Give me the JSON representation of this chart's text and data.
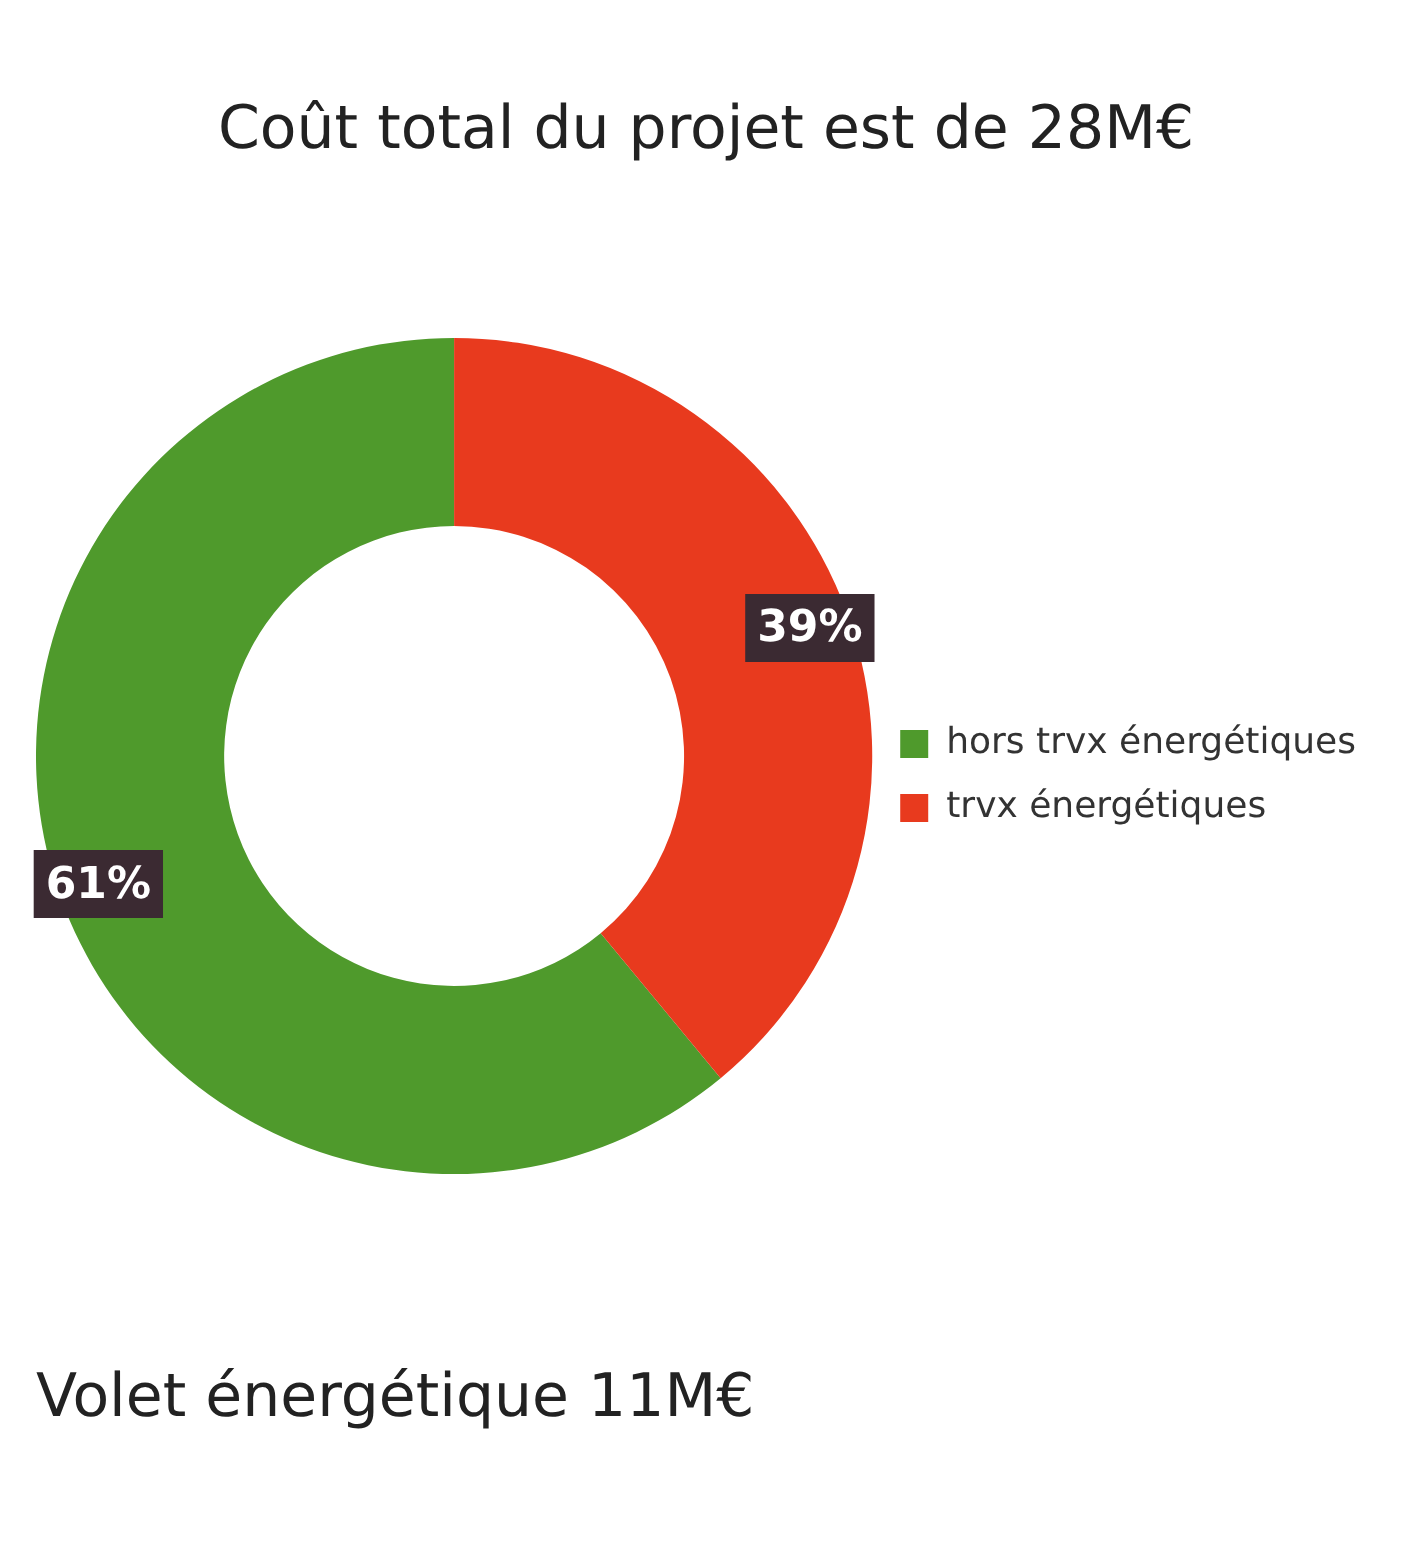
{
  "chart_data": {
    "type": "donut",
    "title": "Coût total du projet est de 28M€",
    "subtitle": "Volet énergétique 11M€",
    "categories": [
      "hors trvx énergétiques",
      "trvx énergétiques"
    ],
    "values": [
      61,
      39
    ],
    "colors": [
      "#4f9a2c",
      "#e83a1e"
    ],
    "value_labels": [
      "61%",
      "39%"
    ],
    "legend": "right"
  }
}
